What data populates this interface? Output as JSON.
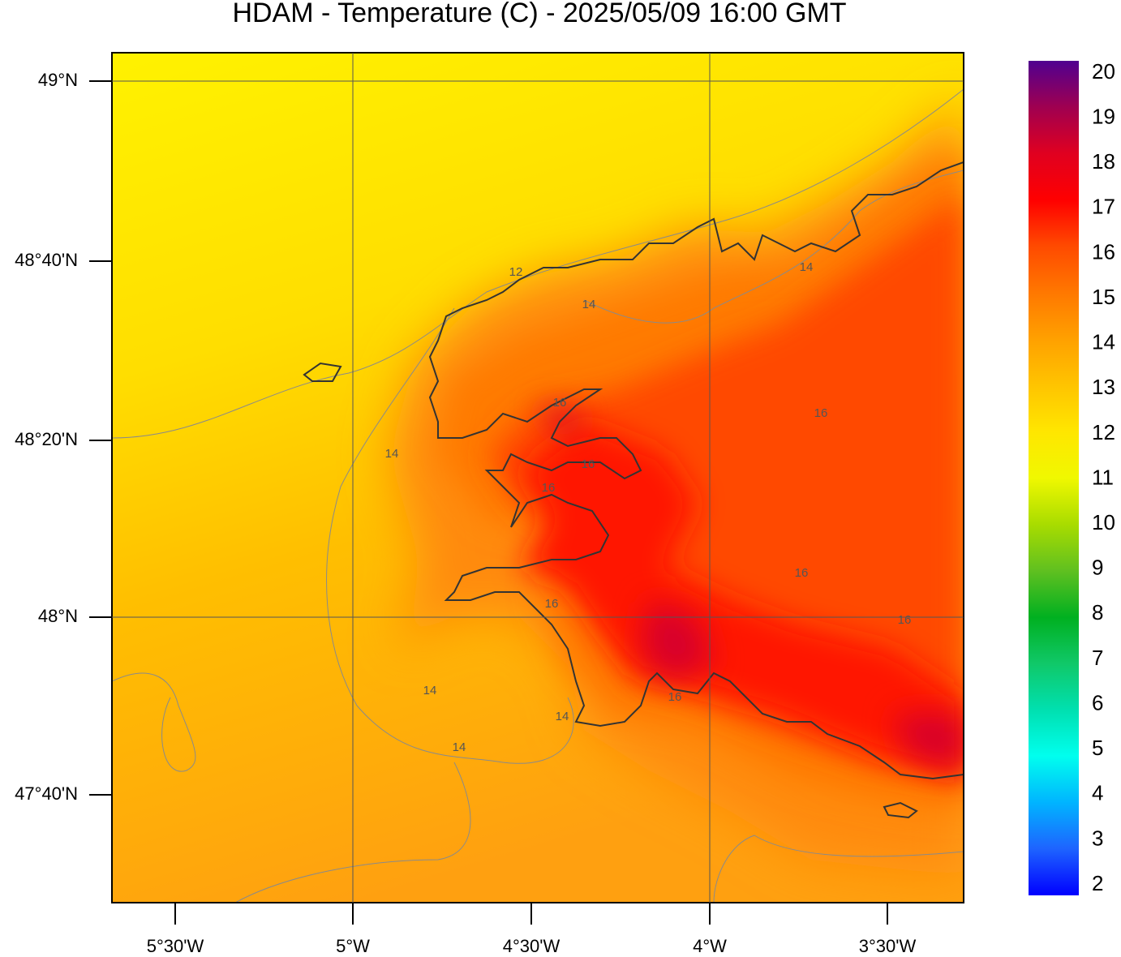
{
  "title": "HDAM - Temperature (C)  -  2025/05/09  16:00 GMT",
  "lat_ticks": [
    "49°N",
    "48°40'N",
    "48°20'N",
    "48°N",
    "47°40'N"
  ],
  "lon_ticks": [
    "5°30'W",
    "5°W",
    "4°30'W",
    "4°W",
    "3°30'W"
  ],
  "colorbar_labels": [
    20,
    19,
    18,
    17,
    16,
    15,
    14,
    13,
    12,
    11,
    10,
    9,
    8,
    7,
    6,
    5,
    4,
    3,
    2
  ],
  "contour_labels": [
    "12",
    "14",
    "14",
    "14",
    "14",
    "14",
    "14",
    "16",
    "16",
    "16",
    "16",
    "16",
    "16",
    "16",
    "16"
  ]
}
